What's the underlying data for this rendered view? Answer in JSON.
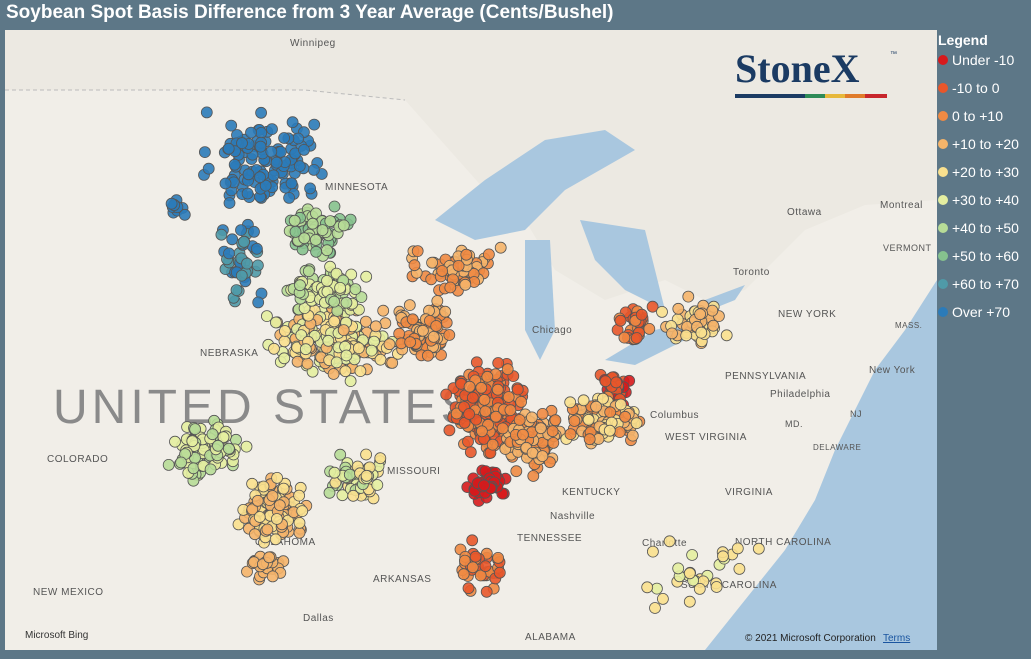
{
  "title": "Soybean Spot Basis Difference from 3 Year Average (Cents/Bushel)",
  "legend": {
    "title": "Legend",
    "items": [
      {
        "label": "Under -10",
        "color": "#d7191c"
      },
      {
        "label": "-10 to 0",
        "color": "#e8562a"
      },
      {
        "label": "0 to +10",
        "color": "#f08a43"
      },
      {
        "label": "+10 to +20",
        "color": "#f5b46a"
      },
      {
        "label": "+20 to +30",
        "color": "#f9e08e"
      },
      {
        "label": "+30 to +40",
        "color": "#e4eea0"
      },
      {
        "label": "+40 to +50",
        "color": "#b7dc97"
      },
      {
        "label": "+50 to +60",
        "color": "#86c28e"
      },
      {
        "label": "+60 to +70",
        "color": "#4f9aa8"
      },
      {
        "label": "Over +70",
        "color": "#2b7bb9"
      }
    ]
  },
  "logo": {
    "name": "StoneX",
    "mark": "™"
  },
  "map_labels": [
    "Winnipeg",
    "MINNESOTA",
    "NEBRASKA",
    "COLORADO",
    "NEW MEXICO",
    "OKLAHOMA",
    "Dallas",
    "ARKANSAS",
    "MISSOURI",
    "Chicago",
    "Columbus",
    "KENTUCKY",
    "Nashville",
    "TENNESSEE",
    "ALABAMA",
    "WEST VIRGINIA",
    "VIRGINIA",
    "NORTH CAROLINA",
    "SOUTH CAROLINA",
    "Charlotte",
    "PENNSYLVANIA",
    "Philadelphia",
    "NEW YORK",
    "New York",
    "Toronto",
    "Ottawa",
    "Montreal",
    "VERMONT",
    "MASS.",
    "MD.",
    "NJ",
    "DELAWARE",
    "UNITED STATES"
  ],
  "attribution": {
    "provider": "Microsoft Bing",
    "copyright": "© 2021 Microsoft Corporation",
    "terms": "Terms"
  }
}
